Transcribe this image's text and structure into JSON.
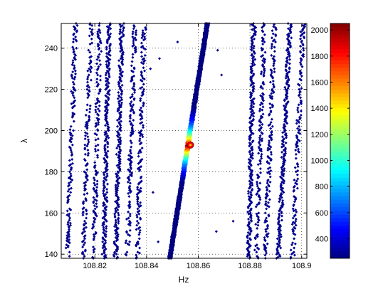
{
  "chart_data": {
    "type": "scatter",
    "title": "",
    "xlabel": "Hz",
    "ylabel": "λ",
    "xlim": [
      108.807,
      108.902
    ],
    "ylim": [
      138,
      252
    ],
    "grid": true,
    "grid_style": "dotted",
    "xticks": [
      108.82,
      108.84,
      108.86,
      108.88,
      108.9
    ],
    "xtick_labels": [
      "108.82",
      "108.84",
      "108.86",
      "108.88",
      "108.9"
    ],
    "yticks": [
      140,
      160,
      180,
      200,
      220,
      240
    ],
    "ytick_labels": [
      "140",
      "160",
      "180",
      "200",
      "220",
      "240"
    ],
    "colorbar": {
      "colormap": "jet",
      "range": [
        250,
        2050
      ],
      "ticks": [
        400,
        600,
        800,
        1000,
        1200,
        1400,
        1600,
        1800,
        2000
      ],
      "tick_labels": [
        "400",
        "600",
        "800",
        "1000",
        "1200",
        "1400",
        "1600",
        "1800",
        "2000"
      ]
    },
    "marker_color": "#00008f",
    "peak": {
      "x": 108.857,
      "y": 193,
      "value": 2000,
      "color": "#ff0000"
    },
    "ridges": [
      {
        "name": "",
        "x_at_ymin": 108.849,
        "x_at_ymax": 108.8635,
        "density": "high",
        "role": "main"
      },
      {
        "name": "",
        "x_at_ymin": 108.8095,
        "x_at_ymax": 108.8125,
        "density": "medium"
      },
      {
        "name": "",
        "x_at_ymin": 108.8155,
        "x_at_ymax": 108.8185,
        "density": "medium"
      },
      {
        "name": "",
        "x_at_ymin": 108.8195,
        "x_at_ymax": 108.822,
        "density": "medium"
      },
      {
        "name": "",
        "x_at_ymin": 108.8235,
        "x_at_ymax": 108.8255,
        "density": "high"
      },
      {
        "name": "",
        "x_at_ymin": 108.828,
        "x_at_ymax": 108.8305,
        "density": "high"
      },
      {
        "name": "",
        "x_at_ymin": 108.8325,
        "x_at_ymax": 108.8355,
        "density": "medium"
      },
      {
        "name": "",
        "x_at_ymin": 108.8365,
        "x_at_ymax": 108.839,
        "density": "medium"
      },
      {
        "name": "",
        "x_at_ymin": 108.8795,
        "x_at_ymax": 108.8815,
        "density": "high"
      },
      {
        "name": "",
        "x_at_ymin": 108.8825,
        "x_at_ymax": 108.8855,
        "density": "medium"
      },
      {
        "name": "",
        "x_at_ymin": 108.886,
        "x_at_ymax": 108.8895,
        "density": "medium"
      },
      {
        "name": "",
        "x_at_ymin": 108.891,
        "x_at_ymax": 108.8955,
        "density": "high"
      },
      {
        "name": "",
        "x_at_ymin": 108.8965,
        "x_at_ymax": 108.9005,
        "density": "medium"
      }
    ],
    "scattered_points": [
      {
        "x": 108.852,
        "y": 243
      },
      {
        "x": 108.8675,
        "y": 239
      },
      {
        "x": 108.845,
        "y": 235
      },
      {
        "x": 108.869,
        "y": 227
      },
      {
        "x": 108.8735,
        "y": 156
      },
      {
        "x": 108.867,
        "y": 151
      },
      {
        "x": 108.8445,
        "y": 146
      },
      {
        "x": 108.8415,
        "y": 230
      },
      {
        "x": 108.8425,
        "y": 170
      }
    ]
  }
}
